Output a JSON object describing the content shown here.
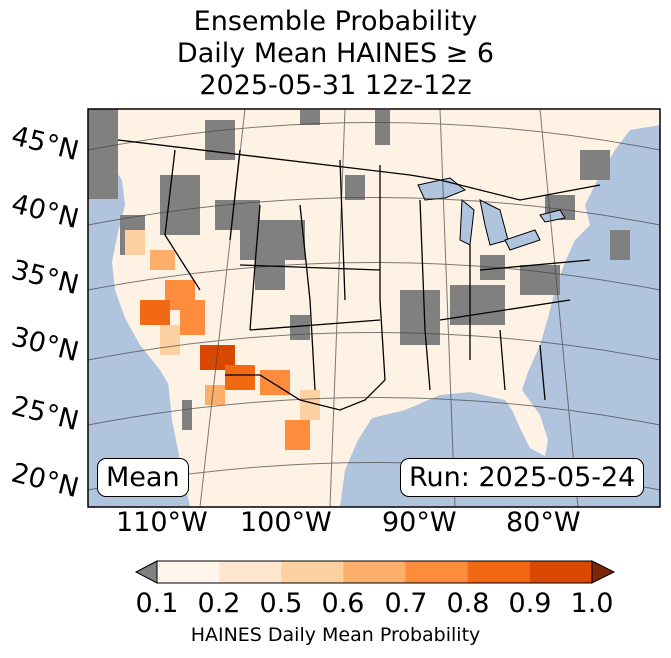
{
  "title": {
    "line1": "Ensemble Probability",
    "line2": "Daily Mean HAINES ≥ 6",
    "line3": "2025-05-31 12z-12z"
  },
  "map": {
    "latitude_labels": [
      "45°N",
      "40°N",
      "35°N",
      "30°N",
      "25°N",
      "20°N"
    ],
    "longitude_labels": [
      "110°W",
      "100°W",
      "90°W",
      "80°W"
    ],
    "ocean_color": "#b0c4de",
    "land_color": "#ffffff",
    "missing_color": "#808080",
    "mean_box": "Mean",
    "run_box": "Run: 2025-05-24"
  },
  "colorbar": {
    "ticks": [
      "0.1",
      "0.2",
      "0.5",
      "0.6",
      "0.7",
      "0.8",
      "0.9",
      "1.0"
    ],
    "colors": [
      "#fff5eb",
      "#fee6ce",
      "#fdd0a2",
      "#fdae6b",
      "#fd8d3c",
      "#f16913",
      "#d94801",
      "#a63603"
    ],
    "under_color": "#808080",
    "over_color": "#7f2704",
    "label": "HAINES Daily Mean Probability"
  }
}
